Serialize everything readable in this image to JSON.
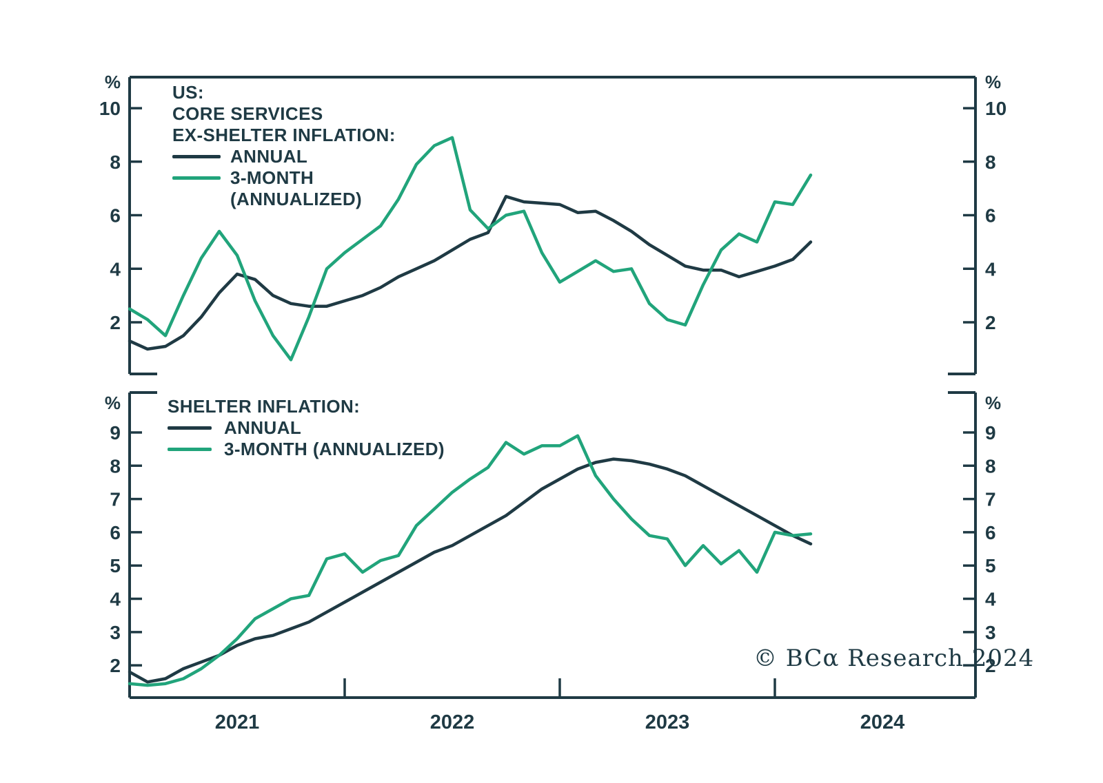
{
  "colors": {
    "line_dark": "#1f3a44",
    "line_green": "#21a47b",
    "background": "#ffffff"
  },
  "watermark": "© BCα Research 2024",
  "chart_data": {
    "type": "line",
    "x_months": [
      "2021-01",
      "2021-02",
      "2021-03",
      "2021-04",
      "2021-05",
      "2021-06",
      "2021-07",
      "2021-08",
      "2021-09",
      "2021-10",
      "2021-11",
      "2021-12",
      "2022-01",
      "2022-02",
      "2022-03",
      "2022-04",
      "2022-05",
      "2022-06",
      "2022-07",
      "2022-08",
      "2022-09",
      "2022-10",
      "2022-11",
      "2022-12",
      "2023-01",
      "2023-02",
      "2023-03",
      "2023-04",
      "2023-05",
      "2023-06",
      "2023-07",
      "2023-08",
      "2023-09",
      "2023-10",
      "2023-11",
      "2023-12",
      "2024-01",
      "2024-02",
      "2024-03"
    ],
    "x_axis_year_labels": [
      "2021",
      "2022",
      "2023",
      "2024"
    ],
    "grid": false,
    "panels": [
      {
        "title_lines": [
          "US:",
          "CORE SERVICES",
          "EX-SHELTER INFLATION:"
        ],
        "unit": "%",
        "y_ticks": [
          2,
          4,
          6,
          8,
          10
        ],
        "ylim": [
          0.07,
          11.16
        ],
        "legend": {
          "annual": "ANNUAL",
          "three_month_line1": "3-MONTH",
          "three_month_line2": "(ANNUALIZED)"
        },
        "series": [
          {
            "name": "ANNUAL",
            "color": "line_dark",
            "values": [
              1.3,
              1.0,
              1.1,
              1.5,
              2.2,
              3.1,
              3.8,
              3.6,
              3.0,
              2.7,
              2.6,
              2.6,
              2.8,
              3.0,
              3.3,
              3.7,
              4.0,
              4.3,
              4.7,
              5.1,
              5.35,
              6.7,
              6.5,
              6.45,
              6.4,
              6.1,
              6.15,
              5.8,
              5.4,
              4.9,
              4.5,
              4.1,
              3.95,
              3.95,
              3.7,
              3.9,
              4.1,
              4.35,
              5.0
            ]
          },
          {
            "name": "3-MONTH (ANNUALIZED)",
            "color": "line_green",
            "values": [
              2.5,
              2.1,
              1.5,
              3.0,
              4.4,
              5.4,
              4.5,
              2.8,
              1.5,
              0.6,
              2.2,
              4.0,
              4.6,
              5.1,
              5.6,
              6.6,
              7.9,
              8.6,
              8.9,
              6.2,
              5.5,
              6.0,
              6.15,
              4.6,
              3.5,
              3.9,
              4.3,
              3.9,
              4.0,
              2.7,
              2.1,
              1.9,
              3.4,
              4.7,
              5.3,
              5.0,
              6.5,
              6.4,
              7.5
            ]
          }
        ]
      },
      {
        "title_lines": [
          "SHELTER INFLATION:"
        ],
        "unit": "%",
        "y_ticks": [
          2,
          3,
          4,
          5,
          6,
          7,
          8,
          9
        ],
        "ylim": [
          1.03,
          10.2
        ],
        "legend": {
          "annual": "ANNUAL",
          "three_month": "3-MONTH (ANNUALIZED)"
        },
        "series": [
          {
            "name": "ANNUAL",
            "color": "line_dark",
            "values": [
              1.8,
              1.5,
              1.6,
              1.9,
              2.1,
              2.3,
              2.6,
              2.8,
              2.9,
              3.1,
              3.3,
              3.6,
              3.9,
              4.2,
              4.5,
              4.8,
              5.1,
              5.4,
              5.6,
              5.9,
              6.2,
              6.5,
              6.9,
              7.3,
              7.6,
              7.9,
              8.1,
              8.2,
              8.15,
              8.05,
              7.9,
              7.7,
              7.4,
              7.1,
              6.8,
              6.5,
              6.2,
              5.9,
              5.65
            ]
          },
          {
            "name": "3-MONTH (ANNUALIZED)",
            "color": "line_green",
            "values": [
              1.45,
              1.4,
              1.45,
              1.6,
              1.9,
              2.3,
              2.8,
              3.4,
              3.7,
              4.0,
              4.1,
              5.2,
              5.35,
              4.8,
              5.15,
              5.3,
              6.2,
              6.7,
              7.2,
              7.6,
              7.95,
              8.7,
              8.35,
              8.6,
              8.6,
              8.9,
              7.7,
              7.0,
              6.4,
              5.9,
              5.8,
              5.0,
              5.6,
              5.05,
              5.45,
              4.8,
              6.0,
              5.9,
              5.95
            ]
          }
        ]
      }
    ]
  }
}
